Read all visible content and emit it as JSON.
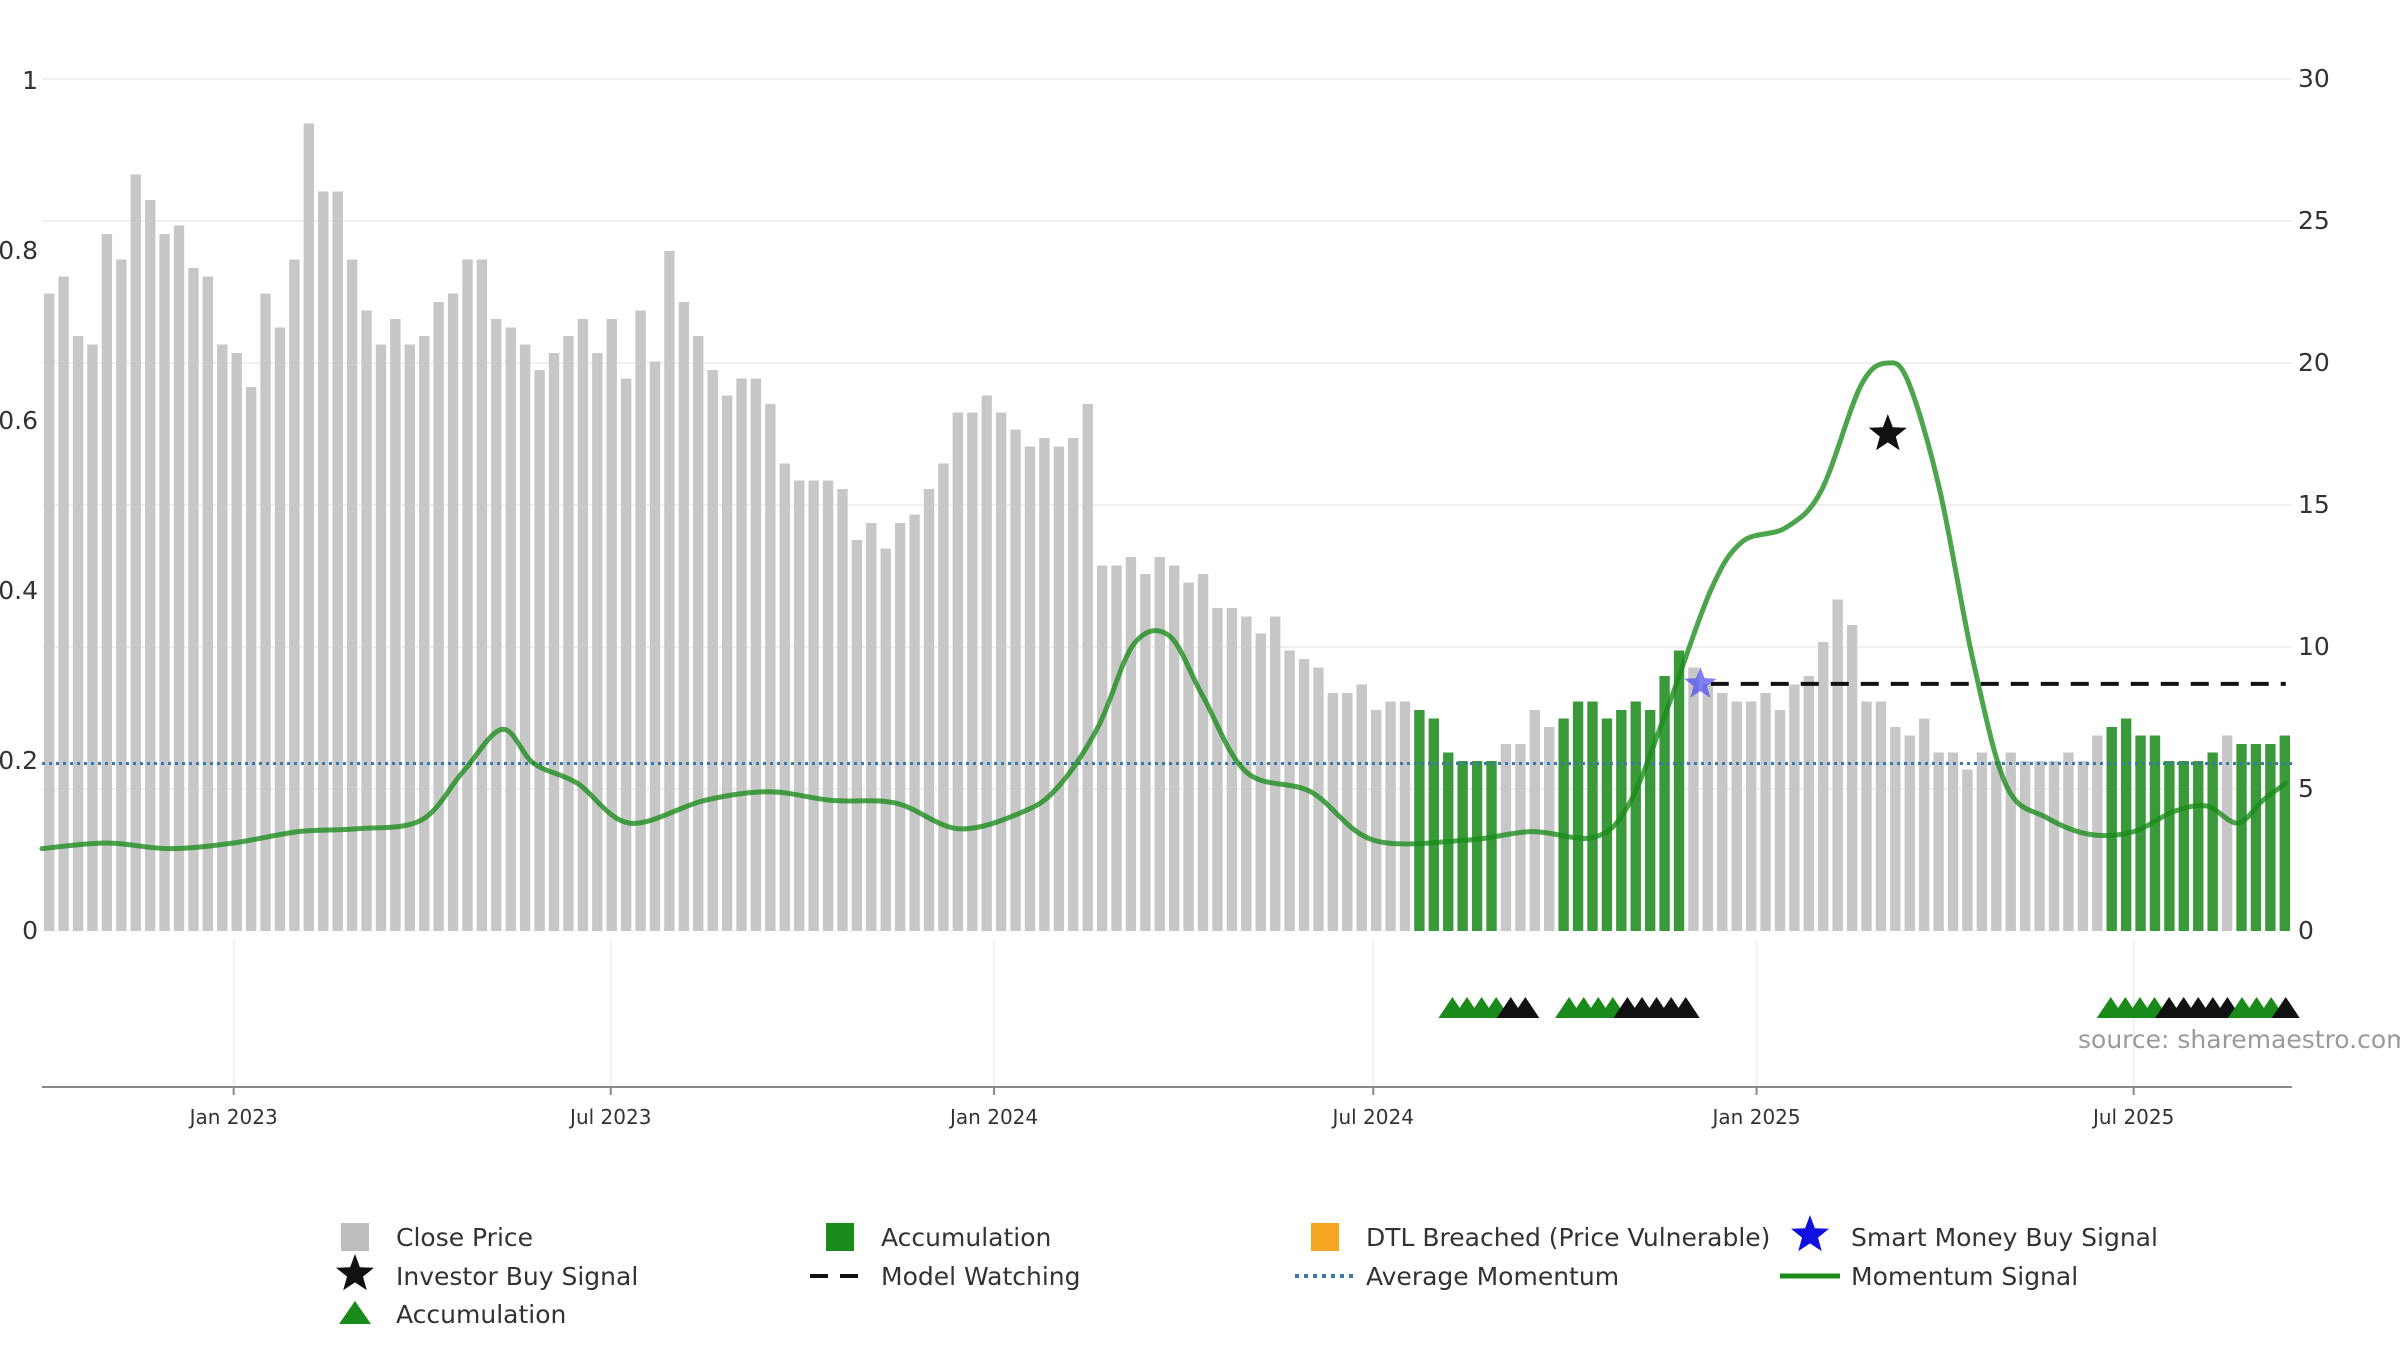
{
  "chart_data": {
    "type": "bar",
    "source_note": "source: sharemaestro.com",
    "left_axis": {
      "ylim": [
        0,
        1
      ],
      "ticks": [
        "0",
        "0.2",
        "0.4",
        "0.6",
        "0.8",
        "1"
      ]
    },
    "right_axis": {
      "ylim": [
        0,
        30
      ],
      "ticks": [
        "0",
        "5",
        "10",
        "15",
        "20",
        "25",
        "30"
      ]
    },
    "x_axis": {
      "start_date": "2022-10-01",
      "end_date": "2025-09-15",
      "tick_dates": [
        "2023-01-01",
        "2023-07-01",
        "2024-01-01",
        "2024-07-01",
        "2025-01-01",
        "2025-07-01"
      ],
      "tick_labels": [
        "Jan 2023",
        "Jul 2023",
        "Jan 2024",
        "Jul 2024",
        "Jan 2025",
        "Jul 2025"
      ]
    },
    "close_price": {
      "name": "Close Price",
      "color": "#c7c7c7",
      "accumulation_color": "#3a9a3a",
      "values": [
        0.75,
        0.77,
        0.7,
        0.69,
        0.82,
        0.79,
        0.89,
        0.86,
        0.82,
        0.83,
        0.78,
        0.77,
        0.69,
        0.68,
        0.64,
        0.75,
        0.71,
        0.79,
        0.95,
        0.87,
        0.87,
        0.79,
        0.73,
        0.69,
        0.72,
        0.69,
        0.7,
        0.74,
        0.75,
        0.79,
        0.79,
        0.72,
        0.71,
        0.69,
        0.66,
        0.68,
        0.7,
        0.72,
        0.68,
        0.72,
        0.65,
        0.73,
        0.67,
        0.8,
        0.74,
        0.7,
        0.66,
        0.63,
        0.65,
        0.65,
        0.62,
        0.55,
        0.53,
        0.53,
        0.53,
        0.52,
        0.46,
        0.48,
        0.45,
        0.48,
        0.49,
        0.52,
        0.55,
        0.61,
        0.61,
        0.63,
        0.61,
        0.59,
        0.57,
        0.58,
        0.57,
        0.58,
        0.62,
        0.43,
        0.43,
        0.44,
        0.42,
        0.44,
        0.43,
        0.41,
        0.42,
        0.38,
        0.38,
        0.37,
        0.35,
        0.37,
        0.33,
        0.32,
        0.31,
        0.28,
        0.28,
        0.29,
        0.26,
        0.27,
        0.27,
        0.26,
        0.25,
        0.21,
        0.2,
        0.2,
        0.2,
        0.22,
        0.22,
        0.26,
        0.24,
        0.25,
        0.27,
        0.27,
        0.25,
        0.26,
        0.27,
        0.26,
        0.3,
        0.33,
        0.31,
        0.29,
        0.28,
        0.27,
        0.27,
        0.28,
        0.26,
        0.29,
        0.3,
        0.34,
        0.39,
        0.36,
        0.27,
        0.27,
        0.24,
        0.23,
        0.25,
        0.21,
        0.21,
        0.19,
        0.21,
        0.2,
        0.21,
        0.2,
        0.2,
        0.2,
        0.21,
        0.2,
        0.23,
        0.24,
        0.25,
        0.23,
        0.23,
        0.2,
        0.2,
        0.2,
        0.21,
        0.23,
        0.22,
        0.22,
        0.22,
        0.23
      ],
      "accumulation_indices": [
        95,
        96,
        97,
        98,
        99,
        100,
        105,
        106,
        107,
        108,
        109,
        110,
        111,
        112,
        113,
        143,
        144,
        145,
        146,
        147,
        148,
        149,
        150,
        152,
        153,
        154,
        155,
        156
      ]
    },
    "momentum_signal": {
      "name": "Momentum Signal",
      "color": "#1a8a1a",
      "x": [
        "2022-10-01",
        "2022-11-01",
        "2022-12-01",
        "2023-01-01",
        "2023-02-01",
        "2023-03-01",
        "2023-04-01",
        "2023-04-21",
        "2023-05-10",
        "2023-05-25",
        "2023-06-15",
        "2023-07-10",
        "2023-08-15",
        "2023-09-15",
        "2023-10-15",
        "2023-11-15",
        "2023-12-15",
        "2024-01-15",
        "2024-02-01",
        "2024-02-20",
        "2024-03-08",
        "2024-03-25",
        "2024-04-10",
        "2024-05-01",
        "2024-06-01",
        "2024-07-01",
        "2024-08-15",
        "2024-09-15",
        "2024-10-15",
        "2024-11-01",
        "2024-11-20",
        "2024-12-10",
        "2024-12-25",
        "2025-01-15",
        "2025-02-01",
        "2025-02-20",
        "2025-03-05",
        "2025-03-15",
        "2025-03-30",
        "2025-04-15",
        "2025-05-01",
        "2025-05-20",
        "2025-06-10",
        "2025-07-01",
        "2025-07-20",
        "2025-08-05",
        "2025-08-20",
        "2025-09-01",
        "2025-09-12"
      ],
      "y": [
        2.9,
        3.1,
        2.9,
        3.1,
        3.5,
        3.6,
        3.9,
        5.6,
        7.1,
        5.9,
        5.2,
        3.8,
        4.6,
        4.9,
        4.6,
        4.5,
        3.6,
        4.2,
        5.1,
        7.2,
        10.1,
        10.4,
        8.3,
        5.6,
        4.9,
        3.2,
        3.2,
        3.5,
        3.3,
        4.5,
        8.0,
        12.0,
        13.7,
        14.2,
        15.5,
        19.2,
        20.0,
        19.3,
        15.5,
        9.5,
        5.1,
        4.0,
        3.4,
        3.5,
        4.2,
        4.4,
        3.8,
        4.6,
        5.2
      ]
    },
    "average_momentum": {
      "name": "Average Momentum",
      "value": 5.9,
      "color": "#3a78b0"
    },
    "model_watching": {
      "name": "Model Watching",
      "value": 8.7,
      "x_start": "2024-12-10",
      "x_end": "2025-09-12",
      "color": "#111111"
    },
    "investor_buy_signal": {
      "name": "Investor Buy Signal",
      "x": "2025-03-05",
      "y": 17.5,
      "color": "#111111"
    },
    "smart_money_buy_signal": {
      "name": "Smart Money Buy Signal",
      "x": "2024-12-05",
      "y": 8.7,
      "color": "#4a4af0"
    },
    "accumulation_markers": {
      "color_green": "#1a8a1a",
      "color_black": "#111111",
      "groups": [
        {
          "green": [
            "2024-08-08",
            "2024-08-15",
            "2024-08-22",
            "2024-08-29"
          ],
          "black": [
            "2024-09-05",
            "2024-09-12"
          ]
        },
        {
          "green": [
            "2024-10-03",
            "2024-10-10",
            "2024-10-17",
            "2024-10-24"
          ],
          "black": [
            "2024-10-31",
            "2024-11-07",
            "2024-11-14",
            "2024-11-21",
            "2024-11-28"
          ]
        },
        {
          "green": [
            "2025-06-20",
            "2025-06-27",
            "2025-07-04",
            "2025-07-11"
          ],
          "black": [
            "2025-07-18",
            "2025-07-25",
            "2025-08-01",
            "2025-08-08",
            "2025-08-15"
          ]
        },
        {
          "green": [
            "2025-08-22",
            "2025-08-29",
            "2025-09-05"
          ],
          "black": [
            "2025-09-12"
          ]
        }
      ]
    },
    "legend": [
      {
        "label": "Close Price",
        "symbol": "square",
        "color": "#bdbdbd"
      },
      {
        "label": "Accumulation",
        "symbol": "square",
        "color": "#1a8a1a"
      },
      {
        "label": "DTL Breached (Price Vulnerable)",
        "symbol": "square",
        "color": "#f5a623"
      },
      {
        "label": "Smart Money Buy Signal",
        "symbol": "star",
        "color": "#1010e0"
      },
      {
        "label": "Investor Buy Signal",
        "symbol": "star",
        "color": "#111111"
      },
      {
        "label": "Model Watching",
        "symbol": "dash",
        "color": "#111111"
      },
      {
        "label": "Average Momentum",
        "symbol": "dot",
        "color": "#3a78b0"
      },
      {
        "label": "Momentum Signal",
        "symbol": "line",
        "color": "#1a8a1a"
      },
      {
        "label": "Accumulation",
        "symbol": "triangle",
        "color": "#1a8a1a"
      }
    ]
  }
}
